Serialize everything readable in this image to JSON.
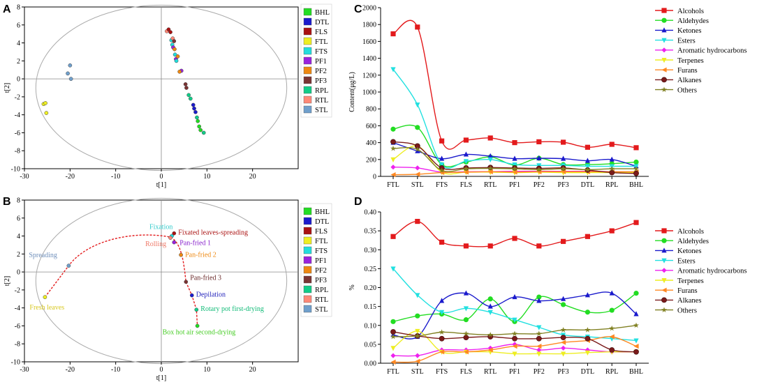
{
  "panels": {
    "a": "A",
    "b": "B",
    "c": "C",
    "d": "D"
  },
  "groups": [
    "BHL",
    "DTL",
    "FLS",
    "FTL",
    "FTS",
    "PF1",
    "PF2",
    "PF3",
    "RPL",
    "RTL",
    "STL"
  ],
  "group_colors": {
    "BHL": "#22dd22",
    "DTL": "#1a1acc",
    "FLS": "#aa1111",
    "FTL": "#eeee22",
    "FTS": "#22dddd",
    "PF1": "#9922dd",
    "PF2": "#ee8811",
    "PF3": "#7a3333",
    "RPL": "#11cc88",
    "RTL": "#ff8877",
    "STL": "#6f9fcc"
  },
  "chart_data": [
    {
      "type": "scatter",
      "panel": "A",
      "xlabel": "t[1]",
      "ylabel": "t[2]",
      "xlim": [
        -30,
        30
      ],
      "ylim": [
        -10,
        8
      ],
      "xticks": [
        -30,
        -20,
        -10,
        0,
        10,
        20
      ],
      "yticks": [
        -10,
        -8,
        -6,
        -4,
        -2,
        0,
        2,
        4,
        6,
        8
      ],
      "points": [
        {
          "g": "STL",
          "x": -20.5,
          "y": 0.6
        },
        {
          "g": "STL",
          "x": -20.0,
          "y": 1.5
        },
        {
          "g": "STL",
          "x": -19.8,
          "y": 0.0
        },
        {
          "g": "FTL",
          "x": -25.8,
          "y": -2.8
        },
        {
          "g": "FTL",
          "x": -25.4,
          "y": -2.7
        },
        {
          "g": "FTL",
          "x": -25.2,
          "y": -3.8
        },
        {
          "g": "RTL",
          "x": 1.2,
          "y": 5.3
        },
        {
          "g": "FLS",
          "x": 1.6,
          "y": 5.5
        },
        {
          "g": "FLS",
          "x": 2.0,
          "y": 5.2
        },
        {
          "g": "FTS",
          "x": 2.2,
          "y": 4.3
        },
        {
          "g": "RTL",
          "x": 2.5,
          "y": 4.5
        },
        {
          "g": "PF3",
          "x": 2.8,
          "y": 4.2
        },
        {
          "g": "FTS",
          "x": 2.4,
          "y": 3.8
        },
        {
          "g": "PF1",
          "x": 2.6,
          "y": 3.5
        },
        {
          "g": "PF2",
          "x": 2.9,
          "y": 3.3
        },
        {
          "g": "FTS",
          "x": 3.0,
          "y": 2.7
        },
        {
          "g": "PF1",
          "x": 3.2,
          "y": 2.2
        },
        {
          "g": "PF2",
          "x": 3.6,
          "y": 2.5
        },
        {
          "g": "FTS",
          "x": 3.3,
          "y": 2.0
        },
        {
          "g": "PF1",
          "x": 4.4,
          "y": 0.9
        },
        {
          "g": "PF2",
          "x": 4.0,
          "y": 0.8
        },
        {
          "g": "PF3",
          "x": 5.5,
          "y": -1.0
        },
        {
          "g": "PF3",
          "x": 5.3,
          "y": -0.6
        },
        {
          "g": "RPL",
          "x": 6.0,
          "y": -1.8
        },
        {
          "g": "RPL",
          "x": 6.4,
          "y": -2.2
        },
        {
          "g": "DTL",
          "x": 7.0,
          "y": -2.9
        },
        {
          "g": "DTL",
          "x": 7.2,
          "y": -3.3
        },
        {
          "g": "DTL",
          "x": 7.5,
          "y": -3.7
        },
        {
          "g": "RPL",
          "x": 7.8,
          "y": -4.3
        },
        {
          "g": "BHL",
          "x": 8.0,
          "y": -4.7
        },
        {
          "g": "BHL",
          "x": 8.3,
          "y": -5.3
        },
        {
          "g": "BHL",
          "x": 8.6,
          "y": -5.7
        },
        {
          "g": "RPL",
          "x": 9.3,
          "y": -6.0
        }
      ],
      "legend": [
        "BHL",
        "DTL",
        "FLS",
        "FTL",
        "FTS",
        "PF1",
        "PF2",
        "PF3",
        "RPL",
        "RTL",
        "STL"
      ]
    },
    {
      "type": "scatter",
      "panel": "B",
      "xlabel": "t[1]",
      "ylabel": "t[2]",
      "xlim": [
        -30,
        30
      ],
      "ylim": [
        -10,
        8
      ],
      "xticks": [
        -30,
        -20,
        -10,
        0,
        10,
        20
      ],
      "yticks": [
        -10,
        -8,
        -6,
        -4,
        -2,
        0,
        2,
        4,
        6,
        8
      ],
      "trajectory": [
        {
          "g": "FTL",
          "x": -25.5,
          "y": -2.8,
          "label": "Fresh leaves",
          "label_color": "#d8c820"
        },
        {
          "g": "STL",
          "x": -20.3,
          "y": 0.7,
          "label": "Spreading",
          "label_color": "#6f8fbb"
        },
        {
          "g": "FTS",
          "x": 2.3,
          "y": 4.0,
          "label": "Fixation",
          "label_color": "#33cccc"
        },
        {
          "g": "FLS",
          "x": 2.8,
          "y": 4.3,
          "label": "Fixated leaves-spreading",
          "label_color": "#aa1111"
        },
        {
          "g": "RTL",
          "x": 2.0,
          "y": 3.8,
          "label": "Rolling",
          "label_color": "#ee7766"
        },
        {
          "g": "PF1",
          "x": 2.8,
          "y": 3.3,
          "label": "Pan-fried 1",
          "label_color": "#8822cc"
        },
        {
          "g": "PF2",
          "x": 4.3,
          "y": 1.9,
          "label": "Pan-fried 2",
          "label_color": "#ee8811"
        },
        {
          "g": "PF3",
          "x": 5.4,
          "y": -1.1,
          "label": "Pan-fried 3",
          "label_color": "#6a2a2a"
        },
        {
          "g": "DTL",
          "x": 6.7,
          "y": -2.6,
          "label": "Depilation",
          "label_color": "#2222bb"
        },
        {
          "g": "RPL",
          "x": 7.7,
          "y": -4.2,
          "label": "Rotary pot first-drying",
          "label_color": "#11bb77"
        },
        {
          "g": "BHL",
          "x": 7.9,
          "y": -6.0,
          "label": "Box hot air second-drying",
          "label_color": "#44cc22"
        }
      ],
      "legend": [
        "BHL",
        "DTL",
        "FLS",
        "FTL",
        "FTS",
        "PF1",
        "PF2",
        "PF3",
        "RPL",
        "RTL",
        "STL"
      ]
    },
    {
      "type": "line",
      "panel": "C",
      "ylabel": "Content(μg/L)",
      "ylim": [
        0,
        2000
      ],
      "yticks": [
        0,
        200,
        400,
        600,
        800,
        1000,
        1200,
        1400,
        1600,
        1800,
        2000
      ],
      "categories": [
        "FTL",
        "STL",
        "FTS",
        "FLS",
        "RTL",
        "PF1",
        "PF2",
        "PF3",
        "DTL",
        "RPL",
        "BHL"
      ],
      "series": [
        {
          "name": "Alcohols",
          "color": "#e31a1c",
          "marker": "square",
          "values": [
            1690,
            1770,
            420,
            430,
            455,
            400,
            410,
            405,
            345,
            380,
            340
          ]
        },
        {
          "name": "Aldehydes",
          "color": "#22dd22",
          "marker": "circle",
          "values": [
            560,
            580,
            140,
            170,
            230,
            135,
            215,
            140,
            140,
            150,
            170
          ]
        },
        {
          "name": "Ketones",
          "color": "#1a1acc",
          "marker": "triangle",
          "values": [
            400,
            300,
            210,
            260,
            240,
            210,
            215,
            210,
            185,
            200,
            120
          ]
        },
        {
          "name": "Esters",
          "color": "#22e0e0",
          "marker": "tridown",
          "values": [
            1270,
            850,
            140,
            180,
            200,
            140,
            130,
            130,
            120,
            120,
            120
          ]
        },
        {
          "name": "Aromatic hydrocarbons",
          "color": "#ee22ee",
          "marker": "diamond",
          "values": [
            110,
            100,
            50,
            55,
            55,
            60,
            60,
            60,
            60,
            55,
            50
          ]
        },
        {
          "name": "Terpenes",
          "color": "#eeee22",
          "marker": "tridownY",
          "values": [
            200,
            360,
            50,
            50,
            50,
            45,
            50,
            45,
            45,
            45,
            45
          ]
        },
        {
          "name": "Furans",
          "color": "#ff8822",
          "marker": "tri-left",
          "values": [
            20,
            25,
            45,
            50,
            55,
            50,
            55,
            55,
            55,
            55,
            55
          ]
        },
        {
          "name": "Alkanes",
          "color": "#7a1a1a",
          "marker": "hex",
          "values": [
            410,
            360,
            100,
            100,
            105,
            100,
            95,
            100,
            75,
            45,
            35
          ]
        },
        {
          "name": "Others",
          "color": "#808022",
          "marker": "star",
          "values": [
            330,
            320,
            70,
            90,
            95,
            90,
            80,
            90,
            80,
            90,
            90
          ]
        }
      ],
      "legend": [
        "Alcohols",
        "Aldehydes",
        "Ketones",
        "Esters",
        "Aromatic hydrocarbons",
        "Terpenes",
        "Furans",
        "Alkanes",
        "Others"
      ]
    },
    {
      "type": "line",
      "panel": "D",
      "ylabel": "%",
      "ylim": [
        0,
        0.4
      ],
      "yticks": [
        "0.00",
        "0.05",
        "0.10",
        "0.15",
        "0.20",
        "0.25",
        "0.30",
        "0.35",
        "0.40"
      ],
      "categories": [
        "FTL",
        "STL",
        "FTS",
        "FLS",
        "RTL",
        "PF1",
        "PF2",
        "PF3",
        "DTL",
        "RPL",
        "BHL"
      ],
      "series": [
        {
          "name": "Alcohols",
          "color": "#e31a1c",
          "marker": "square",
          "values": [
            0.335,
            0.375,
            0.32,
            0.31,
            0.31,
            0.33,
            0.31,
            0.322,
            0.335,
            0.35,
            0.372
          ]
        },
        {
          "name": "Aldehydes",
          "color": "#22dd22",
          "marker": "circle",
          "values": [
            0.11,
            0.125,
            0.13,
            0.115,
            0.17,
            0.11,
            0.175,
            0.155,
            0.135,
            0.14,
            0.185
          ]
        },
        {
          "name": "Ketones",
          "color": "#1a1acc",
          "marker": "triangle",
          "values": [
            0.075,
            0.07,
            0.165,
            0.185,
            0.15,
            0.175,
            0.165,
            0.17,
            0.18,
            0.185,
            0.13
          ]
        },
        {
          "name": "Esters",
          "color": "#22e0e0",
          "marker": "tridown",
          "values": [
            0.25,
            0.18,
            0.135,
            0.145,
            0.135,
            0.115,
            0.095,
            0.075,
            0.07,
            0.065,
            0.06
          ]
        },
        {
          "name": "Aromatic hydrocarbons",
          "color": "#ee22ee",
          "marker": "diamond",
          "values": [
            0.02,
            0.02,
            0.035,
            0.035,
            0.04,
            0.05,
            0.035,
            0.04,
            0.035,
            0.03,
            0.03
          ]
        },
        {
          "name": "Terpenes",
          "color": "#eeee22",
          "marker": "tridownY",
          "values": [
            0.04,
            0.085,
            0.03,
            0.03,
            0.03,
            0.025,
            0.025,
            0.025,
            0.028,
            0.03,
            0.03
          ]
        },
        {
          "name": "Furans",
          "color": "#ff8822",
          "marker": "tri-left",
          "values": [
            0.003,
            0.005,
            0.03,
            0.03,
            0.035,
            0.045,
            0.045,
            0.055,
            0.06,
            0.07,
            0.045
          ]
        },
        {
          "name": "Alkanes",
          "color": "#7a1a1a",
          "marker": "hex",
          "values": [
            0.083,
            0.072,
            0.065,
            0.068,
            0.07,
            0.065,
            0.065,
            0.068,
            0.065,
            0.035,
            0.03
          ]
        },
        {
          "name": "Others",
          "color": "#808022",
          "marker": "star",
          "values": [
            0.07,
            0.072,
            0.082,
            0.078,
            0.075,
            0.078,
            0.078,
            0.088,
            0.088,
            0.092,
            0.1
          ]
        }
      ],
      "legend": [
        "Alcohols",
        "Aldehydes",
        "Ketones",
        "Esters",
        "Aromatic hydrocarbons",
        "Terpenes",
        "Furans",
        "Alkanes",
        "Others"
      ]
    }
  ]
}
